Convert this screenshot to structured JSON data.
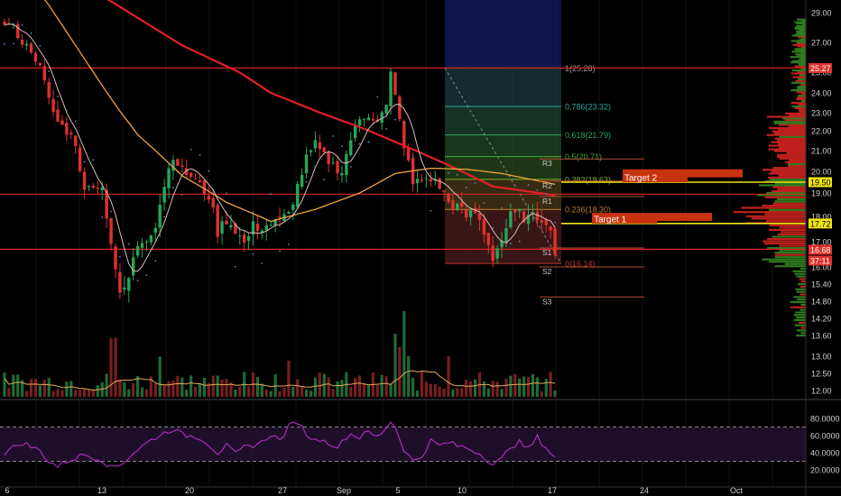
{
  "colors": {
    "background": "#000000",
    "grid": "#141414",
    "axis_text": "#cfcfcf",
    "bull": "#26a65b",
    "bear": "#e0312e",
    "sma_long": "#e21f26",
    "sma_mid": "#f0a23c",
    "sma_fast": "#d9b8b8",
    "hline": "#d8221d",
    "target": "#f0e515",
    "target_box": "#c8320f",
    "volume_avg": "#e3a857",
    "rsi": "#b22fc8",
    "rsi_band": "#22102e",
    "price_tag": "#e0312e",
    "fib_top": "#10175a",
    "pivot": "#b34b34"
  },
  "price_axis": {
    "ticks": [
      "29.00",
      "27.00",
      "25.00",
      "24.00",
      "23.00",
      "22.00",
      "21.00",
      "20.00",
      "19.00",
      "18.00",
      "17.00",
      "16.00",
      "15.40",
      "14.80",
      "14.20",
      "13.60",
      "13.00",
      "12.50",
      "12.00"
    ],
    "tags": [
      {
        "label": "25.27",
        "value": 25.27,
        "kind": "red"
      },
      {
        "label": "19.50",
        "value": 19.5,
        "kind": "yellow"
      },
      {
        "label": "17.72",
        "value": 17.72,
        "kind": "yellow"
      },
      {
        "label": "16.68",
        "value": 16.68,
        "kind": "red"
      },
      {
        "label": "37:11",
        "value": 16.25,
        "kind": "red"
      }
    ]
  },
  "rsi_axis": {
    "ticks": [
      "80.0000",
      "60.0000",
      "40.0000",
      "20.0000"
    ]
  },
  "time_axis": [
    "6",
    "13",
    "20",
    "27",
    "Sep",
    "5",
    "10",
    "17",
    "24",
    "Oct"
  ],
  "annotations": {
    "target1": "Target 1",
    "target2": "Target 2"
  },
  "fib_levels": [
    {
      "label": "1(25.28)",
      "value": 25.28
    },
    {
      "label": "0.786(23.32)",
      "value": 23.32
    },
    {
      "label": "0.618(21.79)",
      "value": 21.79
    },
    {
      "label": "0.5(20.71)",
      "value": 20.71
    },
    {
      "label": "0.382(19.63)",
      "value": 19.63
    },
    {
      "label": "0.236(18.30)",
      "value": 18.3
    },
    {
      "label": "0(16.14)",
      "value": 16.14
    }
  ],
  "pivots": [
    {
      "label": "R3",
      "value": 20.6
    },
    {
      "label": "R2",
      "value": 19.55
    },
    {
      "label": "R1",
      "value": 18.85
    },
    {
      "label": "S1",
      "value": 16.75
    },
    {
      "label": "S2",
      "value": 16.0
    },
    {
      "label": "S3",
      "value": 14.95
    }
  ],
  "chart_data": {
    "type": "candlestick",
    "price_range": [
      13.6,
      29.6
    ],
    "rsi_range": [
      15,
      92
    ],
    "horizontal_lines": [
      25.28,
      18.95,
      16.7
    ],
    "targets": [
      {
        "name": "Target 1",
        "value": 17.72
      },
      {
        "name": "Target 2",
        "value": 19.5
      }
    ],
    "rsi_bands": [
      30,
      70
    ],
    "close_trace": [
      [
        0,
        28.3
      ],
      [
        2,
        28.0
      ],
      [
        4,
        27.0
      ],
      [
        6,
        26.5
      ],
      [
        8,
        25.3
      ],
      [
        10,
        23.6
      ],
      [
        12,
        22.5
      ],
      [
        14,
        22.0
      ],
      [
        16,
        21.4
      ],
      [
        18,
        19.0
      ],
      [
        20,
        19.5
      ],
      [
        22,
        19.2
      ],
      [
        24,
        17.0
      ],
      [
        26,
        14.9
      ],
      [
        28,
        15.6
      ],
      [
        30,
        16.9
      ],
      [
        32,
        17.2
      ],
      [
        34,
        17.7
      ],
      [
        36,
        19.4
      ],
      [
        38,
        20.8
      ],
      [
        40,
        20.0
      ],
      [
        42,
        19.8
      ],
      [
        44,
        19.3
      ],
      [
        46,
        18.9
      ],
      [
        48,
        17.4
      ],
      [
        50,
        17.9
      ],
      [
        52,
        17.5
      ],
      [
        54,
        16.9
      ],
      [
        56,
        17.6
      ],
      [
        58,
        17.6
      ],
      [
        60,
        17.7
      ],
      [
        62,
        17.8
      ],
      [
        64,
        18.1
      ],
      [
        66,
        19.3
      ],
      [
        68,
        20.6
      ],
      [
        70,
        21.3
      ],
      [
        72,
        20.7
      ],
      [
        74,
        20.3
      ],
      [
        76,
        20.0
      ],
      [
        78,
        21.6
      ],
      [
        80,
        22.6
      ],
      [
        82,
        22.9
      ],
      [
        84,
        22.6
      ],
      [
        86,
        23.3
      ],
      [
        87,
        24.9
      ],
      [
        88,
        23.8
      ],
      [
        90,
        21.3
      ],
      [
        92,
        19.4
      ],
      [
        94,
        19.6
      ],
      [
        96,
        19.7
      ],
      [
        98,
        19.3
      ],
      [
        100,
        18.6
      ],
      [
        102,
        18.4
      ],
      [
        104,
        18.0
      ],
      [
        106,
        18.2
      ],
      [
        108,
        17.4
      ],
      [
        110,
        16.4
      ],
      [
        112,
        17.1
      ],
      [
        114,
        18.0
      ],
      [
        116,
        18.1
      ],
      [
        118,
        17.9
      ],
      [
        120,
        18.0
      ],
      [
        122,
        17.9
      ],
      [
        124,
        16.7
      ]
    ],
    "sma_long": [
      [
        0,
        34.5
      ],
      [
        20,
        30.5
      ],
      [
        40,
        26.8
      ],
      [
        60,
        24.0
      ],
      [
        80,
        22.2
      ],
      [
        100,
        20.3
      ],
      [
        110,
        19.3
      ],
      [
        124,
        18.9
      ]
    ],
    "sma_mid": [
      [
        0,
        33.5
      ],
      [
        10,
        29.5
      ],
      [
        20,
        25.0
      ],
      [
        30,
        21.8
      ],
      [
        40,
        19.8
      ],
      [
        50,
        18.6
      ],
      [
        60,
        17.8
      ],
      [
        70,
        18.3
      ],
      [
        80,
        19.0
      ],
      [
        88,
        19.9
      ],
      [
        96,
        20.15
      ],
      [
        104,
        20.1
      ],
      [
        112,
        19.9
      ],
      [
        124,
        19.4
      ]
    ],
    "rsi_trace": [
      [
        0,
        40
      ],
      [
        4,
        52
      ],
      [
        8,
        42
      ],
      [
        10,
        30
      ],
      [
        12,
        24
      ],
      [
        14,
        30
      ],
      [
        18,
        38
      ],
      [
        22,
        32
      ],
      [
        24,
        22
      ],
      [
        26,
        26
      ],
      [
        30,
        44
      ],
      [
        34,
        58
      ],
      [
        38,
        68
      ],
      [
        40,
        61
      ],
      [
        44,
        58
      ],
      [
        46,
        50
      ],
      [
        48,
        40
      ],
      [
        50,
        48
      ],
      [
        52,
        38
      ],
      [
        54,
        46
      ],
      [
        58,
        52
      ],
      [
        60,
        62
      ],
      [
        62,
        54
      ],
      [
        64,
        70
      ],
      [
        66,
        77
      ],
      [
        68,
        62
      ],
      [
        70,
        54
      ],
      [
        72,
        58
      ],
      [
        74,
        44
      ],
      [
        76,
        54
      ],
      [
        78,
        62
      ],
      [
        80,
        58
      ],
      [
        82,
        64
      ],
      [
        84,
        58
      ],
      [
        86,
        70
      ],
      [
        87,
        77
      ],
      [
        88,
        70
      ],
      [
        90,
        44
      ],
      [
        92,
        30
      ],
      [
        94,
        36
      ],
      [
        96,
        54
      ],
      [
        98,
        48
      ],
      [
        100,
        52
      ],
      [
        102,
        48
      ],
      [
        104,
        46
      ],
      [
        106,
        42
      ],
      [
        108,
        36
      ],
      [
        110,
        26
      ],
      [
        112,
        32
      ],
      [
        114,
        48
      ],
      [
        116,
        52
      ],
      [
        118,
        44
      ],
      [
        120,
        58
      ],
      [
        122,
        46
      ],
      [
        124,
        34
      ]
    ]
  }
}
